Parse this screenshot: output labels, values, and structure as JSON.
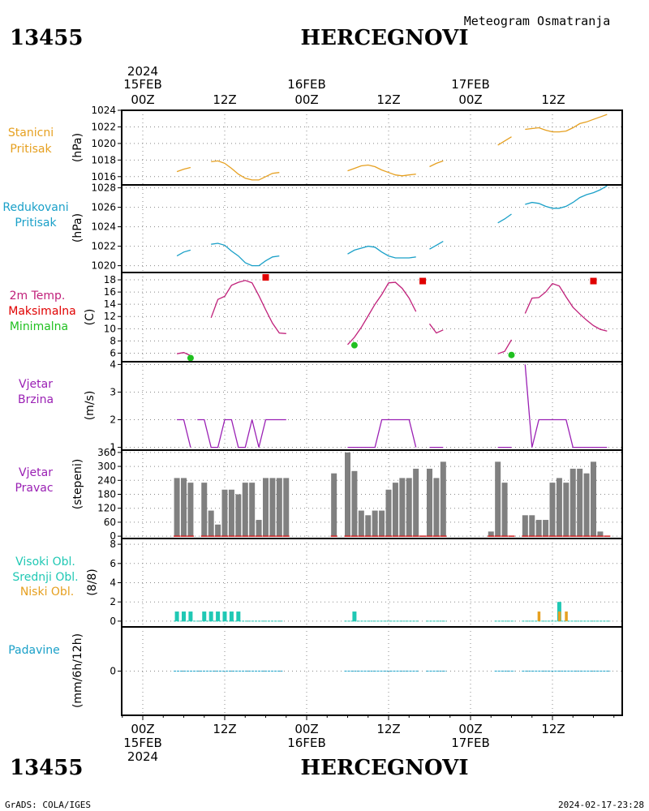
{
  "header": {
    "station_id": "13455",
    "station_name": "HERCEGNOVI",
    "product": "Meteogram Osmatranja"
  },
  "footer": {
    "station_id": "13455",
    "station_name": "HERCEGNOVI",
    "credit": "GrADS: COLA/IGES",
    "timestamp": "2024-02-17-23:28"
  },
  "time_axis": {
    "year": "2024",
    "top_labels": [
      "00Z",
      "12Z",
      "00Z",
      "12Z",
      "00Z",
      "12Z"
    ],
    "day_labels": [
      "15FEB",
      "16FEB",
      "17FEB"
    ],
    "bottom_labels": [
      "00Z",
      "12Z",
      "00Z",
      "12Z",
      "00Z",
      "12Z"
    ]
  },
  "panel_titles": {
    "station_pressure": [
      "Stanicni",
      "Pritisak"
    ],
    "reduced_pressure": [
      "Redukovani",
      "Pritisak"
    ],
    "temperature": [
      "2m Temp.",
      "Maksimalna",
      "Minimalna"
    ],
    "wind_speed": [
      "Vjetar",
      "Brzina"
    ],
    "wind_direction": [
      "Vjetar",
      "Pravac"
    ],
    "clouds": [
      "Visoki Obl.",
      "Srednji Obl.",
      "Niski Obl."
    ],
    "precip": [
      "Padavine"
    ]
  },
  "units": {
    "station_pressure": "(hPa)",
    "reduced_pressure": "(hPa)",
    "temperature": "(C)",
    "wind_speed": "(m/s)",
    "wind_direction": "(stepeni)",
    "clouds": "(8/8)",
    "precip": "(mm/6h/12h)"
  },
  "colors": {
    "station_pressure": "#e6a020",
    "reduced_pressure": "#1aa0c8",
    "temperature": "#c0207a",
    "tmax": "#e00000",
    "tmin": "#20c020",
    "wind_speed": "#9a20b4",
    "wind_direction_bar": "#808080",
    "wind_direction_base": "#d02020",
    "wind_direction_title": "#9a20b4",
    "cloud_high": "#20c8b4",
    "cloud_mid": "#20c8b4",
    "cloud_low": "#e6a020",
    "precip": "#1aa0c8"
  },
  "chart_data": [
    {
      "type": "line",
      "name": "station_pressure",
      "x_unit": "hours since 15FEB 00Z",
      "ylim": [
        1015,
        1024
      ],
      "yticks": [
        1016,
        1018,
        1020,
        1022,
        1024
      ],
      "segments": [
        [
          [
            5,
            1016.6
          ],
          [
            6,
            1016.9
          ],
          [
            7,
            1017.1
          ]
        ],
        [
          [
            10,
            1017.8
          ],
          [
            11,
            1017.9
          ],
          [
            12,
            1017.6
          ],
          [
            13,
            1017.0
          ],
          [
            14,
            1016.3
          ],
          [
            15,
            1015.8
          ],
          [
            16,
            1015.6
          ],
          [
            17,
            1015.6
          ],
          [
            18,
            1016.0
          ],
          [
            19,
            1016.4
          ],
          [
            20,
            1016.5
          ]
        ],
        [
          [
            30,
            1016.7
          ],
          [
            31,
            1017.0
          ],
          [
            32,
            1017.3
          ],
          [
            33,
            1017.4
          ],
          [
            34,
            1017.2
          ],
          [
            35,
            1016.8
          ],
          [
            36,
            1016.5
          ],
          [
            37,
            1016.2
          ],
          [
            38,
            1016.1
          ],
          [
            39,
            1016.2
          ],
          [
            40,
            1016.3
          ]
        ],
        [
          [
            42,
            1017.2
          ],
          [
            43,
            1017.6
          ],
          [
            44,
            1017.9
          ]
        ],
        [
          [
            52,
            1019.8
          ],
          [
            53,
            1020.3
          ],
          [
            54,
            1020.8
          ]
        ],
        [
          [
            56,
            1021.7
          ],
          [
            57,
            1021.8
          ],
          [
            58,
            1021.9
          ],
          [
            59,
            1021.6
          ],
          [
            60,
            1021.4
          ],
          [
            61,
            1021.4
          ],
          [
            62,
            1021.5
          ],
          [
            63,
            1021.9
          ],
          [
            64,
            1022.4
          ],
          [
            65,
            1022.6
          ],
          [
            66,
            1022.9
          ],
          [
            67,
            1023.2
          ],
          [
            68,
            1023.5
          ]
        ]
      ]
    },
    {
      "type": "line",
      "name": "reduced_pressure",
      "x_unit": "hours since 15FEB 00Z",
      "ylim": [
        1019.3,
        1028.3
      ],
      "yticks": [
        1020,
        1022,
        1024,
        1026,
        1028
      ],
      "segments": [
        [
          [
            5,
            1021.0
          ],
          [
            6,
            1021.4
          ],
          [
            7,
            1021.6
          ]
        ],
        [
          [
            10,
            1022.2
          ],
          [
            11,
            1022.3
          ],
          [
            12,
            1022.1
          ],
          [
            13,
            1021.5
          ],
          [
            14,
            1021.0
          ],
          [
            15,
            1020.3
          ],
          [
            16,
            1020.0
          ],
          [
            17,
            1020.0
          ],
          [
            18,
            1020.5
          ],
          [
            19,
            1020.9
          ],
          [
            20,
            1021.0
          ]
        ],
        [
          [
            30,
            1021.2
          ],
          [
            31,
            1021.6
          ],
          [
            32,
            1021.8
          ],
          [
            33,
            1022.0
          ],
          [
            34,
            1021.9
          ],
          [
            35,
            1021.4
          ],
          [
            36,
            1021.0
          ],
          [
            37,
            1020.8
          ],
          [
            38,
            1020.8
          ],
          [
            39,
            1020.8
          ],
          [
            40,
            1020.9
          ]
        ],
        [
          [
            42,
            1021.7
          ],
          [
            43,
            1022.1
          ],
          [
            44,
            1022.5
          ]
        ],
        [
          [
            52,
            1024.4
          ],
          [
            53,
            1024.8
          ],
          [
            54,
            1025.3
          ]
        ],
        [
          [
            56,
            1026.3
          ],
          [
            57,
            1026.5
          ],
          [
            58,
            1026.4
          ],
          [
            59,
            1026.1
          ],
          [
            60,
            1025.9
          ],
          [
            61,
            1025.9
          ],
          [
            62,
            1026.1
          ],
          [
            63,
            1026.5
          ],
          [
            64,
            1027.0
          ],
          [
            65,
            1027.3
          ],
          [
            66,
            1027.5
          ],
          [
            67,
            1027.8
          ],
          [
            68,
            1028.2
          ]
        ]
      ]
    },
    {
      "type": "line",
      "name": "temperature",
      "x_unit": "hours since 15FEB 00Z",
      "ylim": [
        4.6,
        19.2
      ],
      "yticks": [
        6,
        8,
        10,
        12,
        14,
        16,
        18
      ],
      "segments": [
        [
          [
            5,
            5.9
          ],
          [
            6,
            6.1
          ],
          [
            7,
            5.6
          ]
        ],
        [
          [
            10,
            11.8
          ],
          [
            11,
            14.8
          ],
          [
            12,
            15.3
          ],
          [
            13,
            17.1
          ],
          [
            14,
            17.6
          ],
          [
            15,
            17.9
          ],
          [
            16,
            17.5
          ],
          [
            17,
            15.4
          ],
          [
            18,
            13.1
          ],
          [
            19,
            10.9
          ],
          [
            20,
            9.3
          ],
          [
            21,
            9.2
          ]
        ],
        [
          [
            30,
            7.4
          ],
          [
            31,
            8.6
          ],
          [
            32,
            10.2
          ],
          [
            33,
            12.1
          ],
          [
            34,
            14.0
          ],
          [
            35,
            15.6
          ],
          [
            36,
            17.5
          ],
          [
            37,
            17.6
          ],
          [
            38,
            16.6
          ],
          [
            39,
            15.0
          ],
          [
            40,
            12.8
          ]
        ],
        [
          [
            42,
            10.8
          ],
          [
            43,
            9.3
          ],
          [
            44,
            9.8
          ]
        ],
        [
          [
            52,
            5.9
          ],
          [
            53,
            6.3
          ],
          [
            54,
            8.2
          ]
        ],
        [
          [
            56,
            12.5
          ],
          [
            57,
            15.0
          ],
          [
            58,
            15.1
          ],
          [
            59,
            16.0
          ],
          [
            60,
            17.4
          ],
          [
            61,
            17.0
          ],
          [
            62,
            15.2
          ],
          [
            63,
            13.5
          ],
          [
            64,
            12.4
          ],
          [
            65,
            11.4
          ],
          [
            66,
            10.5
          ],
          [
            67,
            9.9
          ],
          [
            68,
            9.6
          ]
        ]
      ],
      "tmax": [
        [
          18,
          18.4
        ],
        [
          41,
          17.8
        ],
        [
          66,
          17.8
        ]
      ],
      "tmin": [
        [
          7,
          5.2
        ],
        [
          31,
          7.3
        ],
        [
          54,
          5.7
        ]
      ]
    },
    {
      "type": "line",
      "name": "wind_speed",
      "x_unit": "hours since 15FEB 00Z",
      "ylim": [
        0.9,
        4.1
      ],
      "yticks": [
        1,
        2,
        3,
        4
      ],
      "segments": [
        [
          [
            5,
            2
          ],
          [
            6,
            2
          ],
          [
            7,
            1
          ]
        ],
        [
          [
            8,
            2
          ],
          [
            9,
            2
          ],
          [
            10,
            1
          ],
          [
            11,
            1
          ],
          [
            12,
            2
          ],
          [
            13,
            2
          ],
          [
            14,
            1
          ],
          [
            15,
            1
          ],
          [
            16,
            2
          ],
          [
            17,
            1
          ],
          [
            18,
            2
          ],
          [
            19,
            2
          ],
          [
            20,
            2
          ],
          [
            21,
            2
          ]
        ],
        [
          [
            30,
            1
          ],
          [
            31,
            1
          ],
          [
            32,
            1
          ],
          [
            33,
            1
          ],
          [
            34,
            1
          ],
          [
            35,
            2
          ],
          [
            36,
            2
          ],
          [
            37,
            2
          ],
          [
            38,
            2
          ],
          [
            39,
            2
          ],
          [
            40,
            1
          ]
        ],
        [
          [
            42,
            1
          ],
          [
            43,
            1
          ],
          [
            44,
            1
          ]
        ],
        [
          [
            52,
            1
          ],
          [
            53,
            1
          ],
          [
            54,
            1
          ]
        ],
        [
          [
            56,
            4
          ],
          [
            57,
            1
          ],
          [
            58,
            2
          ],
          [
            59,
            2
          ],
          [
            60,
            2
          ],
          [
            61,
            2
          ],
          [
            62,
            2
          ],
          [
            63,
            1
          ],
          [
            64,
            1
          ],
          [
            65,
            1
          ],
          [
            66,
            1
          ],
          [
            67,
            1
          ],
          [
            68,
            1
          ]
        ]
      ]
    },
    {
      "type": "bar",
      "name": "wind_direction",
      "x_unit": "hours since 15FEB 00Z",
      "ylim": [
        -10,
        370
      ],
      "yticks": [
        0,
        60,
        120,
        180,
        240,
        300,
        360
      ],
      "x": [
        5,
        6,
        7,
        9,
        10,
        11,
        12,
        13,
        14,
        15,
        16,
        17,
        18,
        19,
        20,
        21,
        28,
        30,
        31,
        32,
        33,
        34,
        35,
        36,
        37,
        38,
        39,
        40,
        41,
        42,
        43,
        44,
        51,
        52,
        53,
        54,
        56,
        57,
        58,
        59,
        60,
        61,
        62,
        63,
        64,
        65,
        66,
        67,
        68
      ],
      "values": [
        250,
        250,
        230,
        230,
        110,
        50,
        200,
        200,
        180,
        230,
        230,
        70,
        250,
        250,
        250,
        250,
        270,
        360,
        280,
        110,
        90,
        110,
        110,
        200,
        230,
        250,
        250,
        290,
        0,
        290,
        250,
        320,
        20,
        320,
        230,
        0,
        90,
        90,
        70,
        70,
        230,
        250,
        230,
        290,
        290,
        270,
        320,
        20,
        0
      ]
    },
    {
      "type": "bar",
      "name": "clouds",
      "x_unit": "hours since 15FEB 00Z",
      "ylim": [
        -0.6,
        8.6
      ],
      "yticks": [
        0,
        2,
        4,
        6,
        8
      ],
      "high_mid": {
        "x": [
          5,
          6,
          7,
          9,
          10,
          11,
          12,
          13,
          14,
          31,
          61
        ],
        "values": [
          1,
          1,
          1,
          1,
          1,
          1,
          1,
          1,
          1,
          1,
          2
        ]
      },
      "low": {
        "x": [
          58,
          61,
          62
        ],
        "values": [
          1,
          1,
          1
        ]
      },
      "baseline_segments": [
        [
          5,
          20
        ],
        [
          30,
          40
        ],
        [
          42,
          44
        ],
        [
          52,
          54
        ],
        [
          56,
          68
        ]
      ]
    },
    {
      "type": "line",
      "name": "precip",
      "x_unit": "hours since 15FEB 00Z",
      "ylim": [
        -5,
        5
      ],
      "yticks": [
        0
      ],
      "baseline_segments": [
        [
          5,
          20
        ],
        [
          30,
          40
        ],
        [
          42,
          44
        ],
        [
          52,
          54
        ],
        [
          56,
          68
        ]
      ]
    }
  ]
}
